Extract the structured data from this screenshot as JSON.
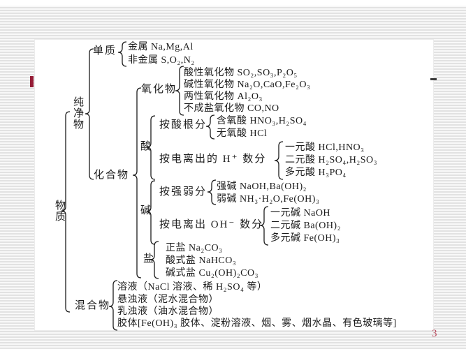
{
  "page": {
    "page_number": "3"
  },
  "colors": {
    "accent_red_dash": "#951c36",
    "black_dash": "#3a3a3a",
    "page_number_red": "#b5495b",
    "stripe_gray": "#e2e2e2",
    "ink": "#1b1b1b"
  },
  "tree": {
    "root": "物质",
    "pure": "纯净物",
    "element": "单质",
    "element_metal": "金属 Na,Mg,Al",
    "element_nonmetal": "非金属 S,O₂,N₂",
    "compound": "化合物",
    "oxide": "氧化物",
    "oxide_acidic": "酸性氧化物 SO₂,SO₃,P₂O₅",
    "oxide_basic": "碱性氧化物 Na₂O,CaO,Fe₂O₃",
    "oxide_amphoteric": "两性氧化物 Al₂O₃",
    "oxide_nonsalt": "不成盐氧化物 CO,NO",
    "acid": "酸",
    "acid_by_radical": "按酸根分",
    "acid_oxy": "含氧酸 HNO₃,H₂SO₄",
    "acid_anoxy": "无氧酸 HCl",
    "acid_by_h": "按电离出的 H⁺ 数分",
    "acid_mono": "一元酸 HCl,HNO₃",
    "acid_di": "二元酸 H₂SO₄,H₂SO₃",
    "acid_poly": "多元酸 H₃PO₄",
    "base": "碱",
    "base_by_strength": "按强弱分",
    "base_strong": "强碱 NaOH,Ba(OH)₂",
    "base_weak": "弱碱 NH₃·H₂O,Fe(OH)₃",
    "base_by_oh": "按电离出 OH⁻ 数分",
    "base_mono": "一元碱 NaOH",
    "base_di": "二元碱 Ba(OH)₂",
    "base_poly": "多元碱 Fe(OH)₃",
    "salt": "盐",
    "salt_normal": "正盐 Na₂CO₃",
    "salt_acid": "酸式盐 NaHCO₃",
    "salt_basic": "碱式盐 Cu₂(OH)₂CO₃",
    "mixture": "混合物",
    "mixture_solution": "溶液（NaCl 溶液、稀 H₂SO₄ 等）",
    "mixture_suspension": "悬浊液（泥水混合物）",
    "mixture_emulsion": "乳浊液（油水混合物）",
    "mixture_colloid": "胶体[Fe(OH)₃ 胶体、淀粉溶液、烟、雾、烟水晶、有色玻璃等]"
  }
}
